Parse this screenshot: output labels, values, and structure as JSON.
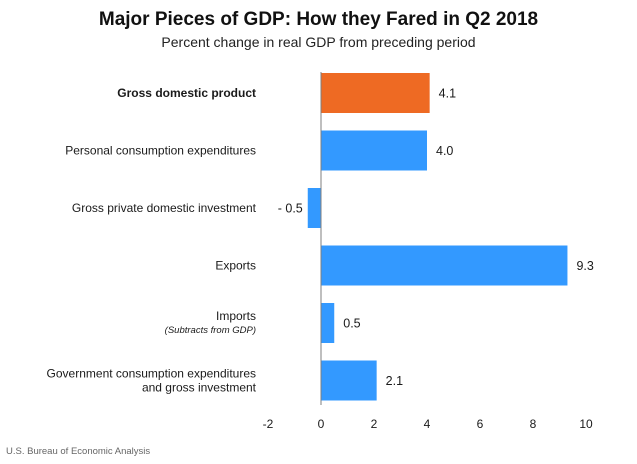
{
  "chart_data": {
    "type": "bar",
    "orientation": "horizontal",
    "title": "Major Pieces of GDP: How they Fared in Q2 2018",
    "subtitle": "Percent change in real GDP from preceding period",
    "xlim": [
      -2,
      10
    ],
    "xticks": [
      -2,
      0,
      2,
      4,
      6,
      8,
      10
    ],
    "xtick_labels": [
      "-2",
      "0",
      "2",
      "4",
      "6",
      "8",
      "10"
    ],
    "categories": [
      {
        "label_lines": [
          "Gross domestic product"
        ],
        "note": "",
        "bold": true,
        "value": 4.1,
        "value_label": "4.1",
        "color": "#EE6A23"
      },
      {
        "label_lines": [
          "Personal consumption expenditures"
        ],
        "note": "",
        "bold": false,
        "value": 4.0,
        "value_label": "4.0",
        "color": "#3399FF"
      },
      {
        "label_lines": [
          "Gross private domestic investment"
        ],
        "note": "",
        "bold": false,
        "value": -0.5,
        "value_label": "- 0.5",
        "color": "#3399FF"
      },
      {
        "label_lines": [
          "Exports"
        ],
        "note": "",
        "bold": false,
        "value": 9.3,
        "value_label": "9.3",
        "color": "#3399FF"
      },
      {
        "label_lines": [
          "Imports"
        ],
        "note": "(Subtracts from GDP)",
        "bold": false,
        "value": 0.5,
        "value_label": "0.5",
        "color": "#3399FF"
      },
      {
        "label_lines": [
          "Government consumption expenditures",
          "and gross investment"
        ],
        "note": "",
        "bold": false,
        "value": 2.1,
        "value_label": "2.1",
        "color": "#3399FF"
      }
    ],
    "source": "U.S. Bureau of Economic Analysis"
  }
}
